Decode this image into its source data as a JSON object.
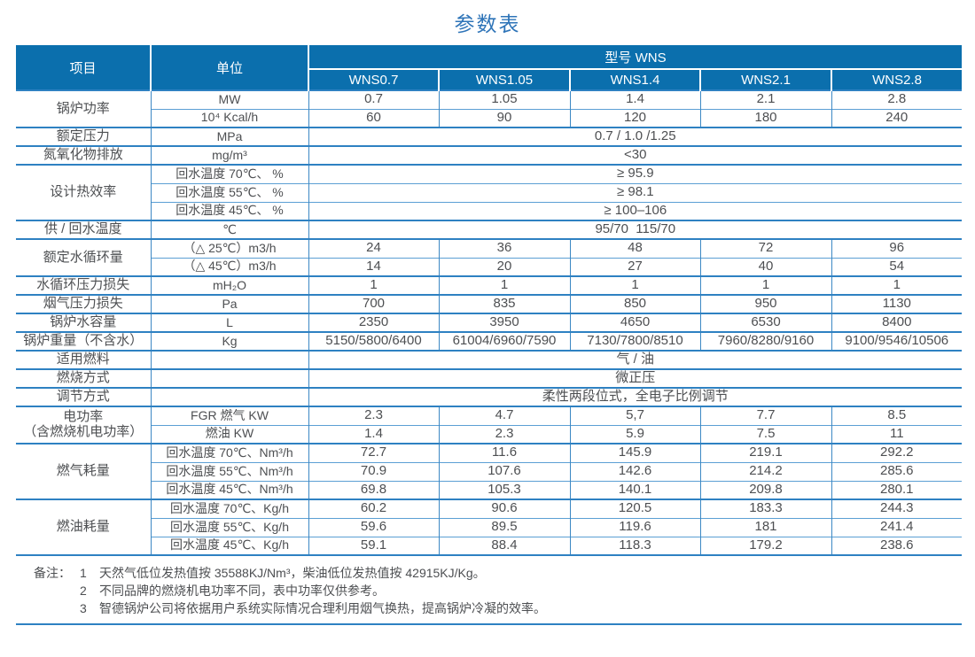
{
  "title": "参数表",
  "colors": {
    "header_bg": "#0b6fad",
    "major_line": "#2e81c2",
    "minor_line": "#5b9fd4",
    "vertical_line": "#3c88c4",
    "title_text": "#2e74b8",
    "body_text": "#4d4f52"
  },
  "table": {
    "columns": {
      "item": "项目",
      "unit": "单位",
      "model_group": "型号 WNS",
      "models": [
        "WNS0.7",
        "WNS1.05",
        "WNS1.4",
        "WNS2.1",
        "WNS2.8"
      ]
    },
    "groups": [
      {
        "item": "锅炉功率",
        "rows": [
          {
            "unit": "MW",
            "values": [
              "0.7",
              "1.05",
              "1.4",
              "2.1",
              "2.8"
            ]
          },
          {
            "unit": "10⁴ Kcal/h",
            "values": [
              "60",
              "90",
              "120",
              "180",
              "240"
            ]
          }
        ]
      },
      {
        "item": "额定压力",
        "rows": [
          {
            "unit": "MPa",
            "span": "0.7 / 1.0 /1.25"
          }
        ]
      },
      {
        "item": "氮氧化物排放",
        "rows": [
          {
            "unit": "mg/m³",
            "span": "<30"
          }
        ]
      },
      {
        "item": "设计热效率",
        "rows": [
          {
            "unit": "回水温度 70℃、 %",
            "span": "≥ 95.9"
          },
          {
            "unit": "回水温度 55℃、 %",
            "span": "≥ 98.1"
          },
          {
            "unit": "回水温度 45℃、 %",
            "span": "≥ 100–106"
          }
        ]
      },
      {
        "item": "供 / 回水温度",
        "rows": [
          {
            "unit": "℃",
            "span": "95/70  115/70"
          }
        ]
      },
      {
        "item": "额定水循环量",
        "rows": [
          {
            "unit": "（△ 25℃）m3/h",
            "values": [
              "24",
              "36",
              "48",
              "72",
              "96"
            ]
          },
          {
            "unit": "（△ 45℃）m3/h",
            "values": [
              "14",
              "20",
              "27",
              "40",
              "54"
            ]
          }
        ]
      },
      {
        "item": "水循环压力损失",
        "rows": [
          {
            "unit": "mH₂O",
            "values": [
              "1",
              "1",
              "1",
              "1",
              "1"
            ]
          }
        ]
      },
      {
        "item": "烟气压力损失",
        "rows": [
          {
            "unit": "Pa",
            "values": [
              "700",
              "835",
              "850",
              "950",
              "1130"
            ]
          }
        ]
      },
      {
        "item": "锅炉水容量",
        "rows": [
          {
            "unit": "L",
            "values": [
              "2350",
              "3950",
              "4650",
              "6530",
              "8400"
            ]
          }
        ]
      },
      {
        "item": "锅炉重量（不含水）",
        "rows": [
          {
            "unit": "Kg",
            "values": [
              "5150/5800/6400",
              "61004/6960/7590",
              "7130/7800/8510",
              "7960/8280/9160",
              "9100/9546/10506"
            ]
          }
        ]
      },
      {
        "item": "适用燃料",
        "rows": [
          {
            "unit": "",
            "span": "气 / 油"
          }
        ]
      },
      {
        "item": "燃烧方式",
        "rows": [
          {
            "unit": "",
            "span": "微正压"
          }
        ]
      },
      {
        "item": "调节方式",
        "rows": [
          {
            "unit": "",
            "span": "柔性两段位式，全电子比例调节"
          }
        ]
      },
      {
        "item": "电功率\n（含燃烧机电功率）",
        "rows": [
          {
            "unit": "FGR 燃气 KW",
            "values": [
              "2.3",
              "4.7",
              "5,7",
              "7.7",
              "8.5"
            ]
          },
          {
            "unit": "燃油 KW",
            "values": [
              "1.4",
              "2.3",
              "5.9",
              "7.5",
              "11"
            ]
          }
        ]
      },
      {
        "item": "燃气耗量",
        "rows": [
          {
            "unit": "回水温度 70℃、Nm³/h",
            "values": [
              "72.7",
              "11.6",
              "145.9",
              "219.1",
              "292.2"
            ]
          },
          {
            "unit": "回水温度 55℃、Nm³/h",
            "values": [
              "70.9",
              "107.6",
              "142.6",
              "214.2",
              "285.6"
            ]
          },
          {
            "unit": "回水温度 45℃、Nm³/h",
            "values": [
              "69.8",
              "105.3",
              "140.1",
              "209.8",
              "280.1"
            ]
          }
        ]
      },
      {
        "item": "燃油耗量",
        "rows": [
          {
            "unit": "回水温度 70℃、Kg/h",
            "values": [
              "60.2",
              "90.6",
              "120.5",
              "183.3",
              "244.3"
            ]
          },
          {
            "unit": "回水温度 55℃、Kg/h",
            "values": [
              "59.6",
              "89.5",
              "119.6",
              "181",
              "241.4"
            ]
          },
          {
            "unit": "回水温度 45℃、Kg/h",
            "values": [
              "59.1",
              "88.4",
              "118.3",
              "179.2",
              "238.6"
            ]
          }
        ]
      }
    ]
  },
  "notes": {
    "label": "备注：",
    "items": [
      {
        "num": "1",
        "text": "天然气低位发热值按 35588KJ/Nm³，柴油低位发热值按 42915KJ/Kg。"
      },
      {
        "num": "2",
        "text": "不同品牌的燃烧机电功率不同，表中功率仅供参考。"
      },
      {
        "num": "3",
        "text": "智德锅炉公司将依据用户系统实际情况合理利用烟气换热，提高锅炉冷凝的效率。"
      }
    ]
  }
}
